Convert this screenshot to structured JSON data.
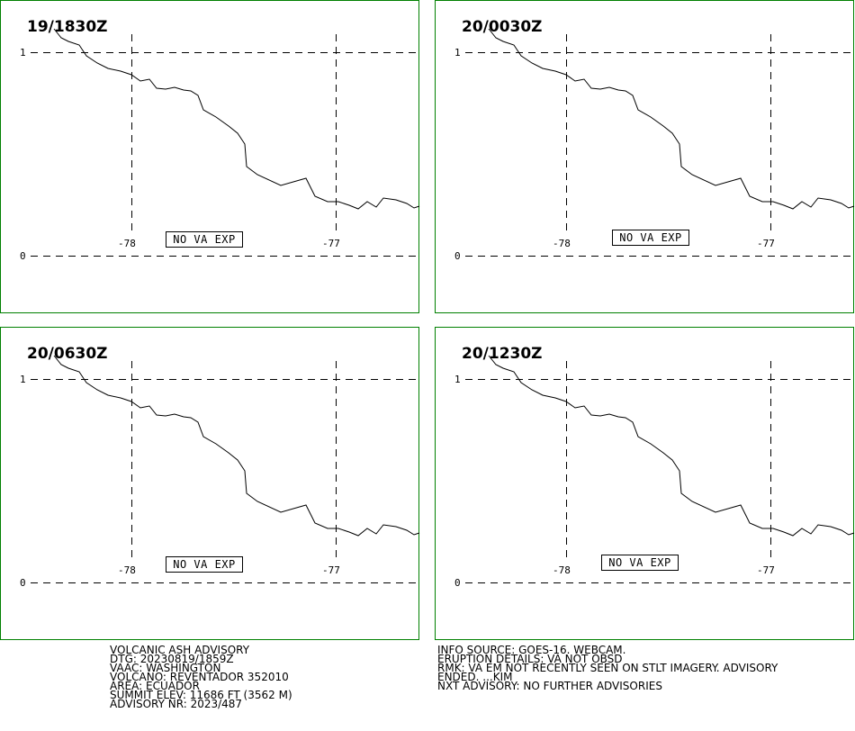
{
  "panels": [
    {
      "title": "19/1830Z",
      "lat_labels": [
        "1",
        "0"
      ],
      "lon_labels": [
        "-78",
        "-77"
      ],
      "status": "NO VA EXP"
    },
    {
      "title": "20/0030Z",
      "lat_labels": [
        "1",
        "0"
      ],
      "lon_labels": [
        "-78",
        "-77"
      ],
      "status": "NO VA EXP"
    },
    {
      "title": "20/0630Z",
      "lat_labels": [
        "1",
        "0"
      ],
      "lon_labels": [
        "-78",
        "-77"
      ],
      "status": "NO VA EXP"
    },
    {
      "title": "20/1230Z",
      "lat_labels": [
        "1",
        "0"
      ],
      "lon_labels": [
        "-78",
        "-77"
      ],
      "status": "NO VA EXP"
    }
  ],
  "advisory_left": [
    "VOLCANIC ASH ADVISORY",
    "DTG: 20230819/1859Z",
    "VAAC: WASHINGTON",
    "VOLCANO: REVENTADOR 352010",
    "AREA: ECUADOR",
    "SUMMIT ELEV: 11686 FT (3562 M)",
    "ADVISORY NR: 2023/487"
  ],
  "advisory_right": [
    "INFO SOURCE: GOES-16. WEBCAM.",
    "ERUPTION DETAILS: VA NOT OBSD",
    "RMK: VA EM NOT RECENTLY SEEN ON STLT IMAGERY. ADVISORY",
    "ENDED. ...KIM",
    "NXT ADVISORY: NO FURTHER ADVISORIES"
  ],
  "colors": {
    "panel_border": "#008000",
    "grid": "#000000",
    "coastline": "#000000"
  }
}
